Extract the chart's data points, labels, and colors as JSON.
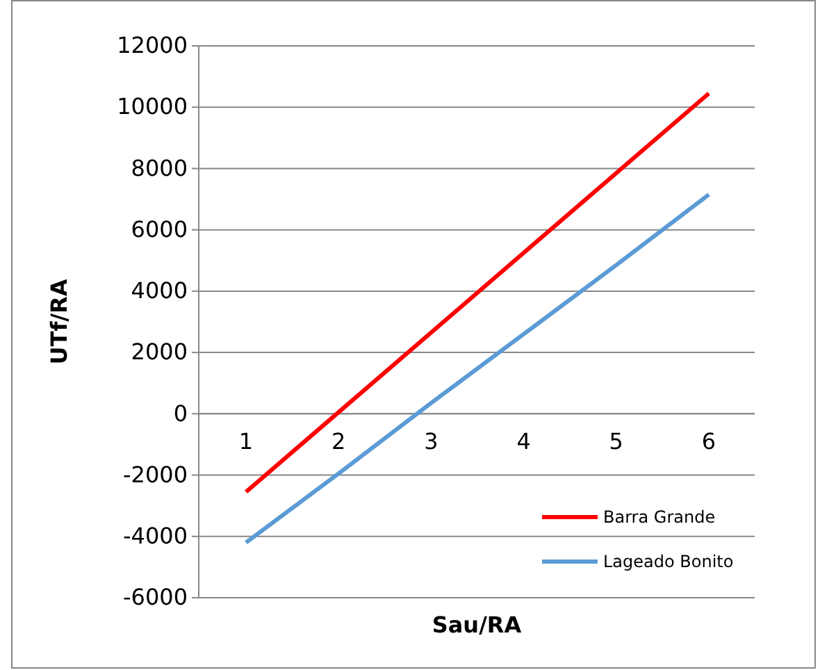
{
  "chart_data": {
    "type": "line",
    "xlabel": "Sau/RA",
    "ylabel": "UTf/RA",
    "categories": [
      "1",
      "2",
      "3",
      "4",
      "5",
      "6"
    ],
    "series": [
      {
        "name": "Barra Grande",
        "color": "#ff0000",
        "values": [
          -2550,
          50,
          2650,
          5250,
          7850,
          10450
        ]
      },
      {
        "name": "Lageado Bonito",
        "color": "#5b9bd5",
        "values": [
          -4200,
          -1950,
          350,
          2600,
          4850,
          7150
        ]
      }
    ],
    "ylim": [
      -6000,
      12000
    ],
    "yticks": [
      -6000,
      -4000,
      -2000,
      0,
      2000,
      4000,
      6000,
      8000,
      10000,
      12000
    ],
    "grid": "y",
    "legend": "bottom right",
    "marker": "none",
    "line_style": "solid"
  }
}
